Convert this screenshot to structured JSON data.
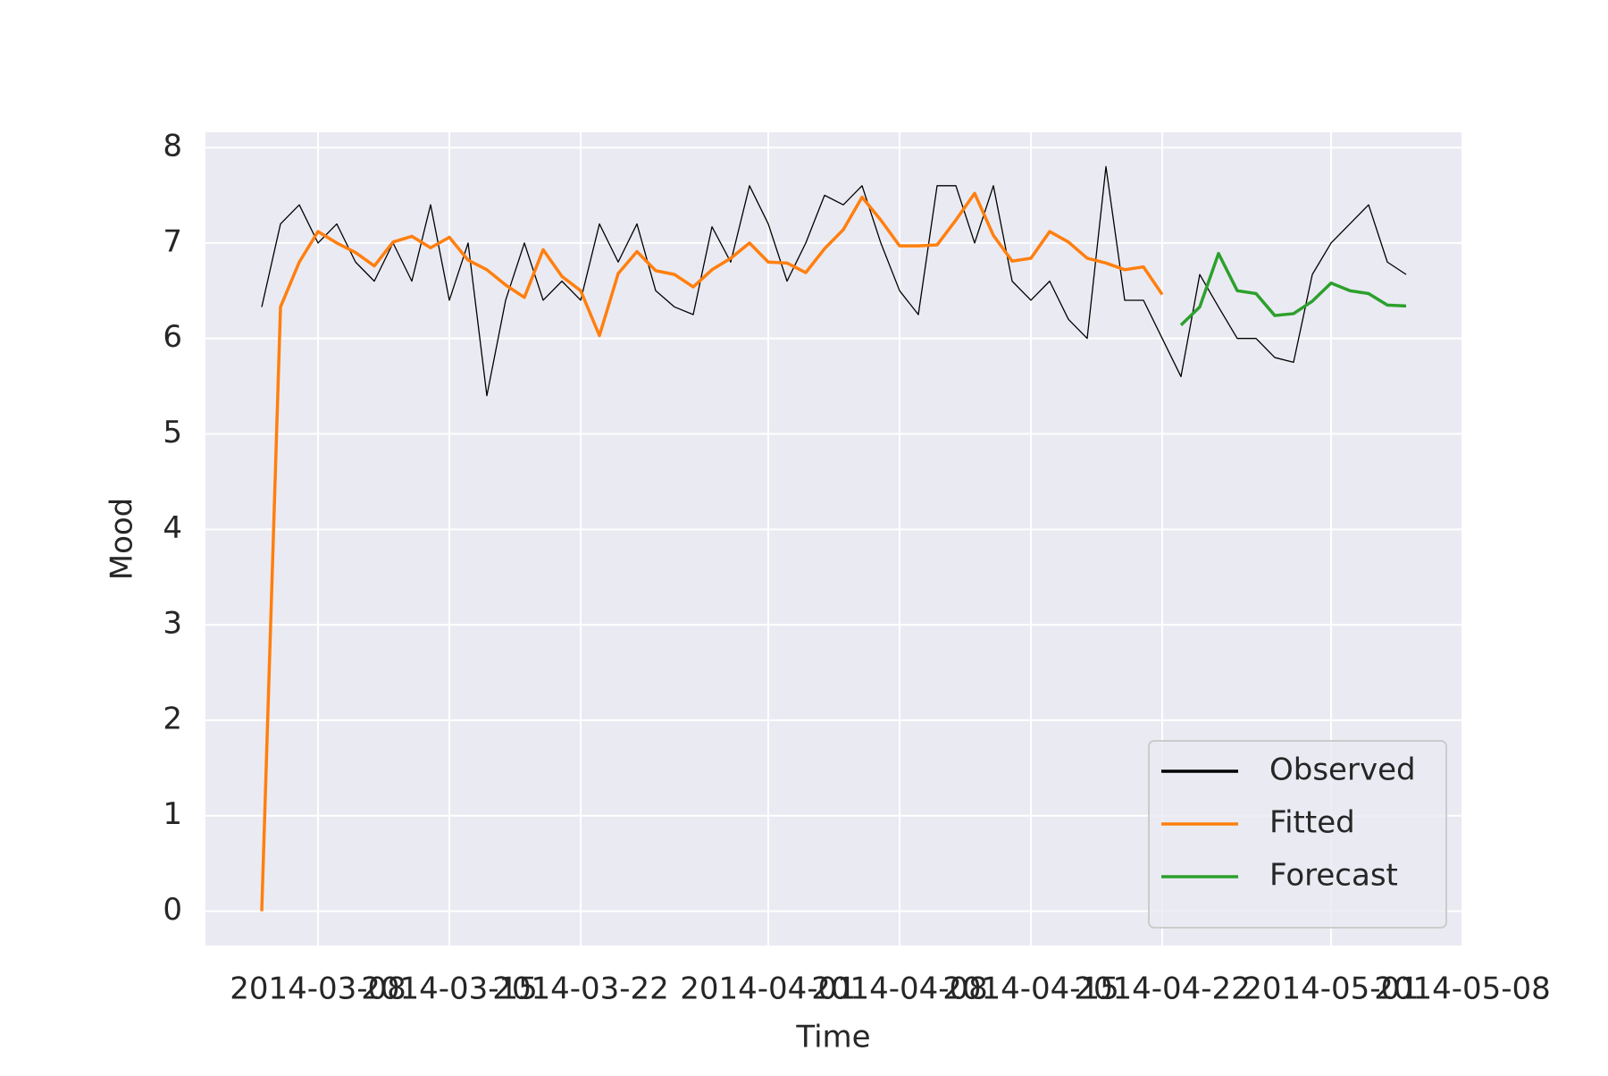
{
  "chart_data": {
    "type": "line",
    "xlabel": "Time",
    "ylabel": "Mood",
    "x": [
      "2014-03-05",
      "2014-03-06",
      "2014-03-07",
      "2014-03-08",
      "2014-03-09",
      "2014-03-10",
      "2014-03-11",
      "2014-03-12",
      "2014-03-13",
      "2014-03-14",
      "2014-03-15",
      "2014-03-16",
      "2014-03-17",
      "2014-03-18",
      "2014-03-19",
      "2014-03-20",
      "2014-03-21",
      "2014-03-22",
      "2014-03-23",
      "2014-03-24",
      "2014-03-25",
      "2014-03-26",
      "2014-03-27",
      "2014-03-28",
      "2014-03-29",
      "2014-03-30",
      "2014-03-31",
      "2014-04-01",
      "2014-04-02",
      "2014-04-03",
      "2014-04-04",
      "2014-04-05",
      "2014-04-06",
      "2014-04-07",
      "2014-04-08",
      "2014-04-09",
      "2014-04-10",
      "2014-04-11",
      "2014-04-12",
      "2014-04-13",
      "2014-04-14",
      "2014-04-15",
      "2014-04-16",
      "2014-04-17",
      "2014-04-18",
      "2014-04-19",
      "2014-04-20",
      "2014-04-21",
      "2014-04-22",
      "2014-04-23",
      "2014-04-24",
      "2014-04-25",
      "2014-04-26",
      "2014-04-27",
      "2014-04-28",
      "2014-04-29",
      "2014-04-30",
      "2014-05-01",
      "2014-05-02",
      "2014-05-03",
      "2014-05-04",
      "2014-05-05"
    ],
    "series": [
      {
        "name": "Observed",
        "color": "#000000",
        "width": 1.3,
        "values": [
          6.33,
          7.2,
          7.4,
          7.0,
          7.2,
          6.8,
          6.6,
          7.0,
          6.6,
          7.4,
          6.4,
          7.0,
          5.4,
          6.4,
          7.0,
          6.4,
          6.6,
          6.4,
          7.2,
          6.8,
          7.2,
          6.5,
          6.33,
          6.25,
          7.17,
          6.8,
          7.6,
          7.2,
          6.6,
          7.0,
          7.5,
          7.4,
          7.6,
          7.0,
          6.5,
          6.25,
          7.6,
          7.6,
          7.0,
          7.6,
          6.6,
          6.4,
          6.6,
          6.2,
          6.0,
          7.8,
          6.4,
          6.4,
          6.0,
          5.6,
          6.67,
          6.33,
          6.0,
          6.0,
          5.8,
          5.75,
          6.67,
          7.0,
          7.2,
          7.4,
          6.8,
          6.67
        ]
      },
      {
        "name": "Fitted",
        "color": "#ff7f0e",
        "width": 3.5,
        "values": [
          0,
          6.33,
          6.8,
          7.12,
          7.0,
          6.9,
          6.76,
          7.01,
          7.07,
          6.95,
          7.06,
          6.82,
          6.72,
          6.56,
          6.43,
          6.93,
          6.65,
          6.5,
          6.03,
          6.68,
          6.91,
          6.71,
          6.67,
          6.54,
          6.72,
          6.84,
          7.0,
          6.8,
          6.79,
          6.69,
          6.94,
          7.14,
          7.48,
          7.24,
          6.97,
          6.97,
          6.98,
          7.24,
          7.52,
          7.08,
          6.81,
          6.84,
          7.12,
          7.01,
          6.84,
          6.79,
          6.72,
          6.75,
          6.46,
          null,
          null,
          null,
          null,
          null,
          null,
          null,
          null,
          null,
          null,
          null,
          null,
          null
        ]
      },
      {
        "name": "Forecast",
        "color": "#2ca02c",
        "width": 3.5,
        "values": [
          null,
          null,
          null,
          null,
          null,
          null,
          null,
          null,
          null,
          null,
          null,
          null,
          null,
          null,
          null,
          null,
          null,
          null,
          null,
          null,
          null,
          null,
          null,
          null,
          null,
          null,
          null,
          null,
          null,
          null,
          null,
          null,
          null,
          null,
          null,
          null,
          null,
          null,
          null,
          null,
          null,
          null,
          null,
          null,
          null,
          null,
          null,
          null,
          null,
          6.14,
          6.33,
          6.89,
          6.5,
          6.47,
          6.24,
          6.26,
          6.39,
          6.58,
          6.5,
          6.47,
          6.35,
          6.34
        ]
      }
    ],
    "xlim": [
      "2014-03-02",
      "2014-05-08"
    ],
    "xticks": [
      "2014-03-08",
      "2014-03-15",
      "2014-03-22",
      "2014-04-01",
      "2014-04-08",
      "2014-04-15",
      "2014-04-22",
      "2014-05-01",
      "2014-05-08"
    ],
    "ylim": [
      -0.36,
      8.16
    ],
    "yticks": [
      0,
      1,
      2,
      3,
      4,
      5,
      6,
      7,
      8
    ],
    "grid": true,
    "legend": "lower right"
  }
}
